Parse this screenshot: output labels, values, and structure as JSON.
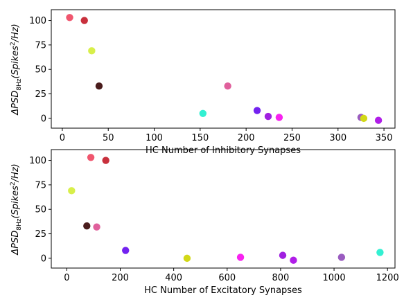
{
  "chart_data": [
    {
      "type": "scatter",
      "xlabel": "HC Number of Inhibitory Synapses",
      "ylabel_main": "ΔPSD",
      "ylabel_sub": "8Hz",
      "ylabel_unit_prefix": "(Spikes",
      "ylabel_unit_sup": "2",
      "ylabel_unit_suffix": "/Hz)",
      "xlim": [
        -12,
        362
      ],
      "ylim": [
        -10,
        111
      ],
      "xticks": [
        0,
        50,
        100,
        150,
        200,
        250,
        300,
        350
      ],
      "yticks": [
        0,
        25,
        50,
        75,
        100
      ],
      "grid": false,
      "points": [
        {
          "x": 8,
          "y": 103,
          "color": "#f0566e"
        },
        {
          "x": 24,
          "y": 100,
          "color": "#c8303c"
        },
        {
          "x": 32,
          "y": 69,
          "color": "#d8ef4a"
        },
        {
          "x": 40,
          "y": 33,
          "color": "#4a1c1c"
        },
        {
          "x": 153,
          "y": 5,
          "color": "#33f0d2"
        },
        {
          "x": 180,
          "y": 33,
          "color": "#e0609c"
        },
        {
          "x": 212,
          "y": 8,
          "color": "#7322f0"
        },
        {
          "x": 224,
          "y": 2,
          "color": "#a020e0"
        },
        {
          "x": 236,
          "y": 1,
          "color": "#f822f0"
        },
        {
          "x": 325,
          "y": 1,
          "color": "#9a5cc0"
        },
        {
          "x": 328,
          "y": 0,
          "color": "#d2d817"
        },
        {
          "x": 344,
          "y": -2,
          "color": "#b01ee8"
        }
      ]
    },
    {
      "type": "scatter",
      "xlabel": "HC Number of Excitatory Synapses",
      "ylabel_main": "ΔPSD",
      "ylabel_sub": "8Hz",
      "ylabel_unit_prefix": "(Spikes",
      "ylabel_unit_sup": "2",
      "ylabel_unit_suffix": "/Hz)",
      "xlim": [
        -58,
        1228
      ],
      "ylim": [
        -10,
        111
      ],
      "xticks": [
        0,
        200,
        400,
        600,
        800,
        1000,
        1200
      ],
      "yticks": [
        0,
        25,
        50,
        75,
        100
      ],
      "grid": false,
      "points": [
        {
          "x": 18,
          "y": 69,
          "color": "#d8ef4a"
        },
        {
          "x": 75,
          "y": 33,
          "color": "#4a1c1c"
        },
        {
          "x": 90,
          "y": 103,
          "color": "#f0566e"
        },
        {
          "x": 112,
          "y": 32,
          "color": "#e0609c"
        },
        {
          "x": 146,
          "y": 100,
          "color": "#c8303c"
        },
        {
          "x": 220,
          "y": 8,
          "color": "#7322f0"
        },
        {
          "x": 450,
          "y": 0,
          "color": "#d2d817"
        },
        {
          "x": 650,
          "y": 1,
          "color": "#f822f0"
        },
        {
          "x": 808,
          "y": 3,
          "color": "#a020e0"
        },
        {
          "x": 848,
          "y": -2,
          "color": "#b01ee8"
        },
        {
          "x": 1028,
          "y": 1,
          "color": "#9a5cc0"
        },
        {
          "x": 1172,
          "y": 6,
          "color": "#33f0d2"
        }
      ]
    }
  ]
}
